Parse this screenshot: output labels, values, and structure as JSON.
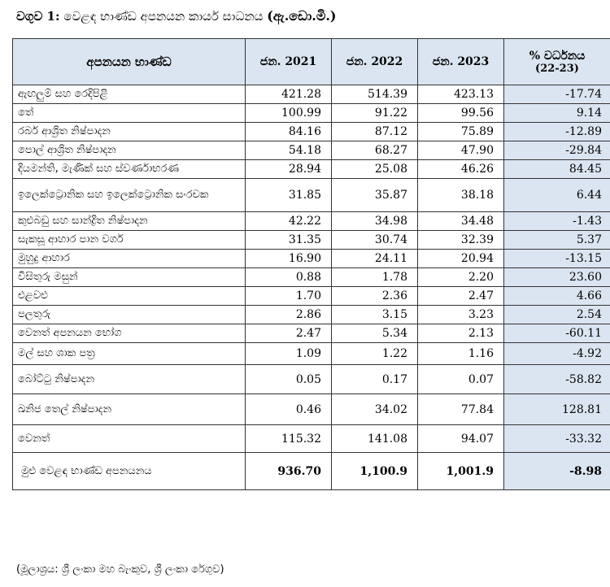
{
  "caption": {
    "label": "වගුව 1:",
    "text": "වෙළඳ භාණ්ඩ අපනයන කාර්ය සාධනය",
    "unit": "(ඇ.ඩො.මි.)"
  },
  "table": {
    "headers": {
      "item": "අපනයන භාණ්ඩ",
      "y2021": "ජන. 2021",
      "y2022": "ජන. 2022",
      "y2023": "ජන. 2023",
      "growth": "% වර්ධනය",
      "growth_sub": "(22-23)"
    },
    "rows": [
      {
        "item": "ඇඟලුම් සහ රෙදිපිළි",
        "y2021": "421.28",
        "y2022": "514.39",
        "y2023": "423.13",
        "growth": "-17.74"
      },
      {
        "item": "තේ",
        "y2021": "100.99",
        "y2022": "91.22",
        "y2023": "99.56",
        "growth": "9.14"
      },
      {
        "item": "රබර් ආශ්‍රිත නිෂ්පාදන",
        "y2021": "84.16",
        "y2022": "87.12",
        "y2023": "75.89",
        "growth": "-12.89"
      },
      {
        "item": "පොල් ආශ්‍රිත නිෂ්පාදන",
        "y2021": "54.18",
        "y2022": "68.27",
        "y2023": "47.90",
        "growth": "-29.84"
      },
      {
        "item": "දියමන්ති, මැණික් සහ ස්වර්ණාභරණ",
        "y2021": "28.94",
        "y2022": "25.08",
        "y2023": "46.26",
        "growth": "84.45"
      },
      {
        "item": "ඉලෙක්ට්‍රොනික සහ ඉලෙක්ට්‍රොනික සංරචක",
        "y2021": "31.85",
        "y2022": "35.87",
        "y2023": "38.18",
        "growth": "6.44"
      },
      {
        "item": "කුළුබඩු සහ සාන්ද්‍රිත නිෂ්පාදන",
        "y2021": "42.22",
        "y2022": "34.98",
        "y2023": "34.48",
        "growth": "-1.43"
      },
      {
        "item": "සැකසූ ආහාර පාන වර්ග",
        "y2021": "31.35",
        "y2022": "30.74",
        "y2023": "32.39",
        "growth": "5.37"
      },
      {
        "item": "මුහුදු ආහාර",
        "y2021": "16.90",
        "y2022": "24.11",
        "y2023": "20.94",
        "growth": "-13.15"
      },
      {
        "item": "විසිතුරු මසුන්",
        "y2021": "0.88",
        "y2022": "1.78",
        "y2023": "2.20",
        "growth": "23.60"
      },
      {
        "item": "එළවළු",
        "y2021": "1.70",
        "y2022": "2.36",
        "y2023": "2.47",
        "growth": "4.66"
      },
      {
        "item": "පලතුරු",
        "y2021": "2.86",
        "y2022": "3.15",
        "y2023": "3.23",
        "growth": "2.54"
      },
      {
        "item": "වෙනත් අපනයන භෝග",
        "y2021": "2.47",
        "y2022": "5.34",
        "y2023": "2.13",
        "growth": "-60.11"
      },
      {
        "item": "මල් සහ ශාක පත්‍ර",
        "y2021": "1.09",
        "y2022": "1.22",
        "y2023": "1.16",
        "growth": "-4.92"
      },
      {
        "item": "බෝට්ටු නිෂ්පාදන",
        "y2021": "0.05",
        "y2022": "0.17",
        "y2023": "0.07",
        "growth": "-58.82"
      },
      {
        "item": "ඛනිජ තෙල් නිෂ්පාදන",
        "y2021": "0.46",
        "y2022": "34.02",
        "y2023": "77.84",
        "growth": "128.81"
      },
      {
        "item": "වෙනත්",
        "y2021": "115.32",
        "y2022": "141.08",
        "y2023": "94.07",
        "growth": "-33.32"
      }
    ],
    "total": {
      "item": "මුළු වෙළඳ භාණ්ඩ අපනයනය",
      "y2021": "936.70",
      "y2022": "1,100.9",
      "y2023": "1,001.9",
      "growth": "-8.98"
    }
  },
  "source": "(මූලාශ්‍රය: ශ්‍රී ලංකා මහ බැංකුව, ශ්‍රී ලංකා රේගුව)"
}
